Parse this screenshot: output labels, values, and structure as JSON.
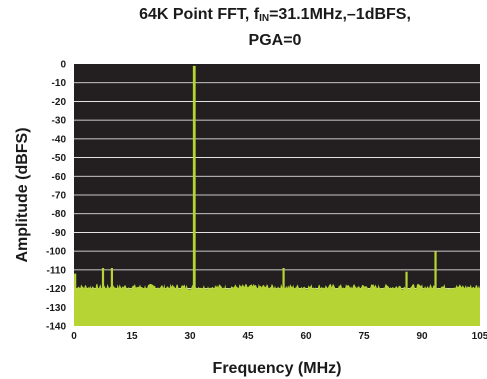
{
  "chart_data": {
    "type": "area",
    "title_line1_prefix": "64K Point FFT, f",
    "title_subscript": "IN",
    "title_line1_suffix": "=31.1MHz,–1dBFS,",
    "title_line2": "PGA=0",
    "xlabel": "Frequency (MHz)",
    "ylabel": "Amplitude (dBFS)",
    "xlim": [
      0,
      105
    ],
    "ylim": [
      -140,
      0
    ],
    "x_ticks": [
      "0",
      "15",
      "30",
      "45",
      "60",
      "75",
      "90",
      "105"
    ],
    "y_ticks": [
      "0",
      "-10",
      "-20",
      "-30",
      "-40",
      "-50",
      "-60",
      "-70",
      "-80",
      "-90",
      "-100",
      "-110",
      "-120",
      "-130",
      "-140"
    ],
    "noise_floor_dbfs": -119,
    "series": [
      {
        "spurs": [
          {
            "x": 0.3,
            "y": -112
          },
          {
            "x": 7.5,
            "y": -109
          },
          {
            "x": 9.8,
            "y": -109
          },
          {
            "x": 31.1,
            "y": -1
          },
          {
            "x": 54.2,
            "y": -109
          },
          {
            "x": 86.0,
            "y": -111
          },
          {
            "x": 93.5,
            "y": -100
          }
        ]
      }
    ],
    "colors": {
      "plot_background": "#231f20",
      "grid": "#ffffff",
      "trace": "#b6d433"
    },
    "grid": true
  }
}
